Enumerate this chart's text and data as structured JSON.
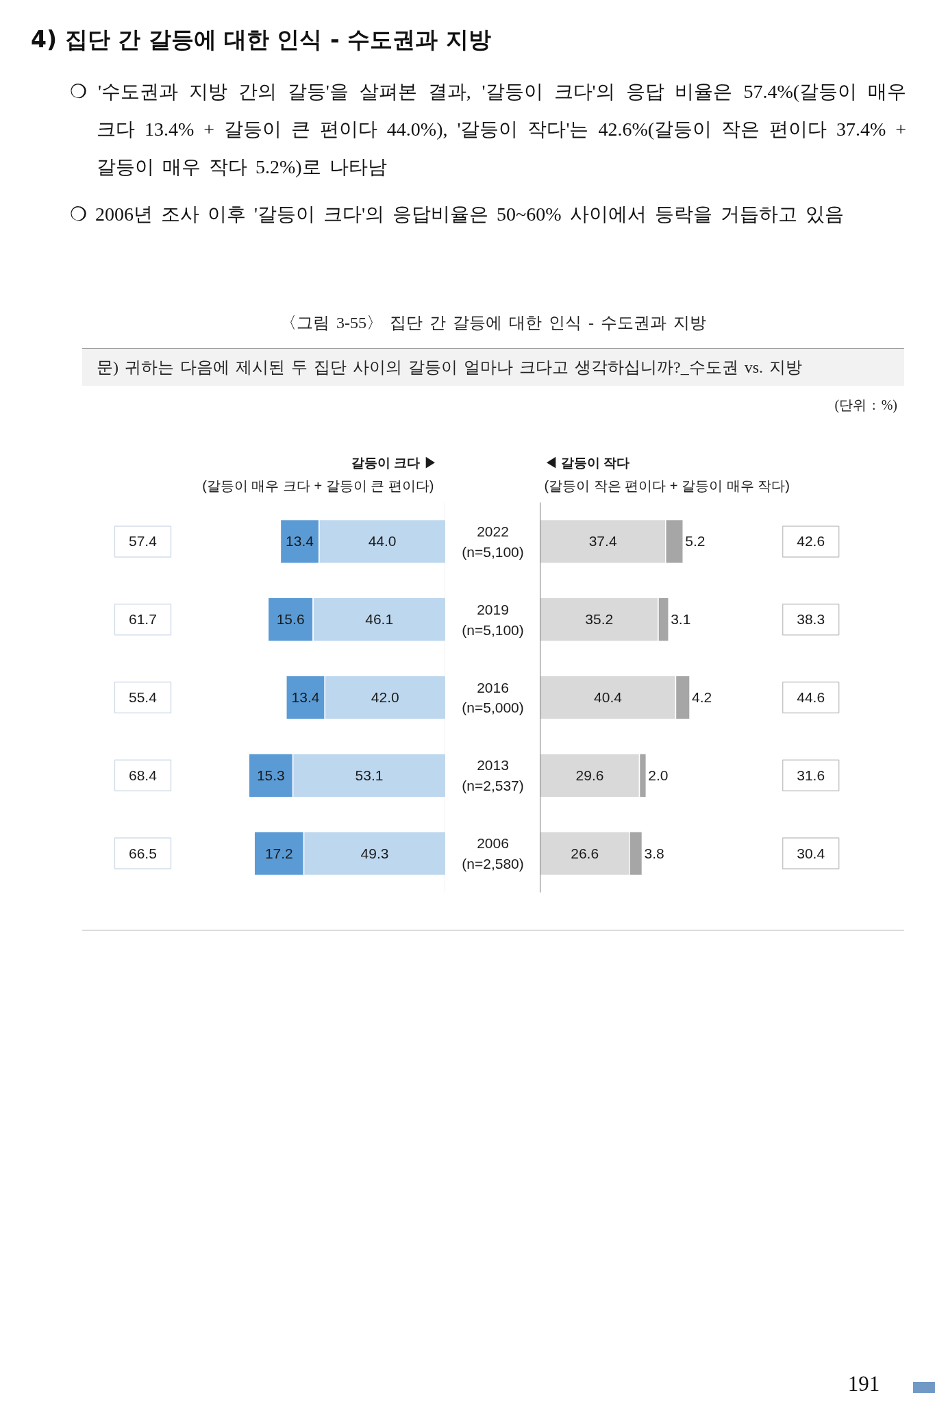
{
  "chart_data": [
    {
      "type": "other",
      "title": "4) 집단 간 갈등에 대한 인식 - 수도권과 지방",
      "annotations": [
        "❍ '수도권과 지방 간의 갈등'을 살펴본 결과, '갈등이 크다'의 응답 비율은 57.4%(갈등이 매우 크다 13.4% + 갈등이 큰 편이다 44.0%), '갈등이 작다'는 42.6%(갈등이 작은 편이다 37.4% + 갈등이 매우 작다 5.2%)로 나타남",
        "❍ 2006년 조사 이후 '갈등이 크다'의 응답비율은 50~60% 사이에서 등락을 거듭하고 있음",
        "〈그림 3-55〉 집단 간 갈등에 대한 인식 - 수도권과 지방",
        "문) 귀하는 다음에 제시된 두 집단 사이의 갈등이 얼마나 크다고 생각하십니까?_수도권 vs. 지방",
        "(단위 : %)",
        "191"
      ]
    },
    {
      "type": "bar",
      "orientation": "horizontal",
      "stacked": true,
      "title": "갈등이 크다 ▶",
      "subtitle": "(갈등이 매우 크다 + 갈등이 큰 편이다)",
      "categories": [
        "2022\n(n=5,100)",
        "2019\n(n=5,100)",
        "2016\n(n=5,000)",
        "2013\n(n=2,537)",
        "2006\n(n=2,580)"
      ],
      "series": [
        {
          "color": "#bdd7ee",
          "values": [
            44.0,
            46.1,
            42.0,
            53.1,
            49.3
          ],
          "value_labels": [
            "44.0",
            "46.1",
            "42.0",
            "53.1",
            "49.3"
          ]
        },
        {
          "color": "#5b9bd5",
          "values": [
            13.4,
            15.6,
            13.4,
            15.3,
            17.2
          ],
          "value_labels": [
            "13.4",
            "15.6",
            "13.4",
            "15.3",
            "17.2"
          ]
        }
      ],
      "annotations": [
        "57.4",
        "61.7",
        "55.4",
        "68.4",
        "66.5"
      ],
      "tick_labels": "y"
    },
    {
      "type": "bar",
      "orientation": "horizontal",
      "stacked": true,
      "title": "◀ 갈등이 작다",
      "subtitle": "(갈등이 작은 편이다 + 갈등이 매우 작다)",
      "categories": [
        null,
        null,
        null,
        null,
        null
      ],
      "series": [
        {
          "color": "#d9d9d9",
          "values": [
            37.4,
            35.2,
            40.4,
            29.6,
            26.6
          ],
          "value_labels": [
            "37.4",
            "35.2",
            "40.4",
            "29.6",
            "26.6"
          ]
        },
        {
          "color": "#a6a6a6",
          "values": [
            5.2,
            3.1,
            4.2,
            2.0,
            3.8
          ],
          "value_labels": [
            "5.2",
            "3.1",
            "4.2",
            "2.0",
            "3.8"
          ]
        }
      ],
      "annotations": [
        "42.6",
        "38.3",
        "44.6",
        "31.6",
        "30.4"
      ],
      "tick_labels": false
    }
  ]
}
